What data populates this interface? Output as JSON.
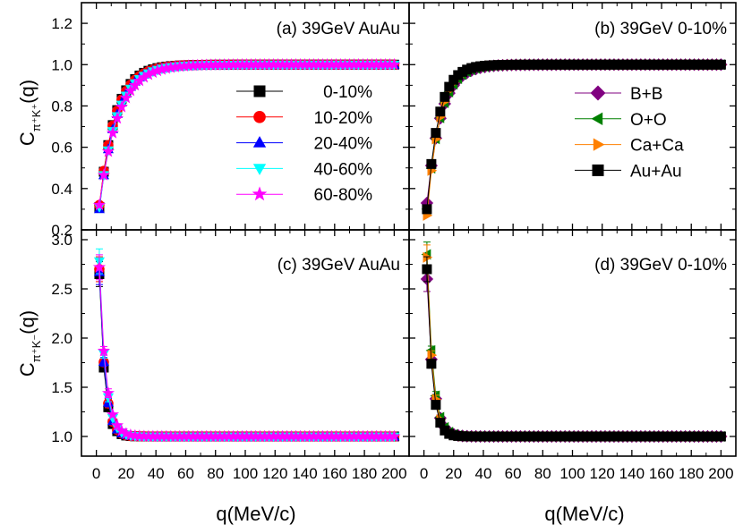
{
  "figure": {
    "xlabel": "q(MeV/c)",
    "ylabel_main": "C",
    "ylabel_top_sub": "π⁺K⁺",
    "ylabel_bottom_sub": "π⁺K⁻",
    "ylabel_suffix": "(q)"
  },
  "chart_data": [
    {
      "id": "a",
      "type": "scatter",
      "title": "(a) 39GeV AuAu",
      "xlabel": "q(MeV/c)",
      "ylabel": "C_{π+K+}(q)",
      "xlim": [
        -10,
        210
      ],
      "ylim": [
        0.2,
        1.3
      ],
      "xticks": [
        0,
        20,
        40,
        60,
        80,
        100,
        120,
        140,
        160,
        180,
        200
      ],
      "yticks": [
        0.2,
        0.4,
        0.6,
        0.8,
        1.0,
        1.2
      ],
      "legend_position": "center-right",
      "model": "saturating",
      "series": [
        {
          "name": "0-10%",
          "color": "#000000",
          "marker": "square",
          "y0": 0.31,
          "yinf": 1.0,
          "scale": 10.5
        },
        {
          "name": "10-20%",
          "color": "#ff0000",
          "marker": "circle",
          "y0": 0.32,
          "yinf": 1.0,
          "scale": 10.8
        },
        {
          "name": "20-40%",
          "color": "#0000ff",
          "marker": "triangle-up",
          "y0": 0.3,
          "yinf": 1.0,
          "scale": 11.2
        },
        {
          "name": "40-60%",
          "color": "#00ffff",
          "marker": "triangle-down",
          "y0": 0.31,
          "yinf": 1.0,
          "scale": 11.8
        },
        {
          "name": "60-80%",
          "color": "#ff00ff",
          "marker": "star",
          "y0": 0.32,
          "yinf": 1.0,
          "scale": 12.5
        }
      ]
    },
    {
      "id": "b",
      "type": "scatter",
      "title": "(b) 39GeV 0-10%",
      "xlabel": "q(MeV/c)",
      "ylabel": "C_{π+K+}(q)",
      "xlim": [
        -10,
        210
      ],
      "ylim": [
        0.2,
        1.3
      ],
      "xticks": [
        0,
        20,
        40,
        60,
        80,
        100,
        120,
        140,
        160,
        180,
        200
      ],
      "yticks": [
        0.2,
        0.4,
        0.6,
        0.8,
        1.0,
        1.2
      ],
      "legend_position": "center-right",
      "model": "saturating",
      "series": [
        {
          "name": "B+B",
          "color": "#800080",
          "marker": "diamond",
          "y0": 0.33,
          "yinf": 1.0,
          "scale": 9.5
        },
        {
          "name": "O+O",
          "color": "#008000",
          "marker": "triangle-left",
          "y0": 0.3,
          "yinf": 1.0,
          "scale": 9.0
        },
        {
          "name": "Ca+Ca",
          "color": "#ff8000",
          "marker": "triangle-right",
          "y0": 0.27,
          "yinf": 1.0,
          "scale": 8.5
        },
        {
          "name": "Au+Au",
          "color": "#000000",
          "marker": "square",
          "y0": 0.3,
          "yinf": 1.0,
          "scale": 8.0
        }
      ]
    },
    {
      "id": "c",
      "type": "scatter",
      "title": "(c) 39GeV AuAu",
      "xlabel": "q(MeV/c)",
      "ylabel": "C_{π+K-}(q)",
      "xlim": [
        -10,
        210
      ],
      "ylim": [
        0.8,
        3.1
      ],
      "xticks": [
        0,
        20,
        40,
        60,
        80,
        100,
        120,
        140,
        160,
        180,
        200
      ],
      "yticks": [
        1.0,
        1.5,
        2.0,
        2.5,
        3.0
      ],
      "model": "decaying",
      "series": [
        {
          "name": "0-10%",
          "color": "#000000",
          "marker": "square",
          "y0": 2.65,
          "yinf": 1.0,
          "scale": 3.5
        },
        {
          "name": "10-20%",
          "color": "#ff0000",
          "marker": "circle",
          "y0": 2.7,
          "yinf": 1.0,
          "scale": 3.7
        },
        {
          "name": "20-40%",
          "color": "#0000ff",
          "marker": "triangle-up",
          "y0": 2.67,
          "yinf": 1.0,
          "scale": 3.8
        },
        {
          "name": "40-60%",
          "color": "#00ffff",
          "marker": "triangle-down",
          "y0": 2.78,
          "yinf": 1.0,
          "scale": 4.0
        },
        {
          "name": "60-80%",
          "color": "#ff00ff",
          "marker": "star",
          "y0": 2.72,
          "yinf": 1.0,
          "scale": 4.4
        }
      ]
    },
    {
      "id": "d",
      "type": "scatter",
      "title": "(d) 39GeV 0-10%",
      "xlabel": "q(MeV/c)",
      "ylabel": "C_{π+K-}(q)",
      "xlim": [
        -10,
        210
      ],
      "ylim": [
        0.8,
        3.1
      ],
      "xticks": [
        0,
        20,
        40,
        60,
        80,
        100,
        120,
        140,
        160,
        180,
        200
      ],
      "yticks": [
        1.0,
        1.5,
        2.0,
        2.5,
        3.0
      ],
      "model": "decaying",
      "series": [
        {
          "name": "B+B",
          "color": "#800080",
          "marker": "diamond",
          "y0": 2.6,
          "yinf": 1.0,
          "scale": 4.2
        },
        {
          "name": "O+O",
          "color": "#008000",
          "marker": "triangle-left",
          "y0": 2.85,
          "yinf": 1.0,
          "scale": 4.0
        },
        {
          "name": "Ca+Ca",
          "color": "#ff8000",
          "marker": "triangle-right",
          "y0": 2.82,
          "yinf": 1.0,
          "scale": 3.8
        },
        {
          "name": "Au+Au",
          "color": "#000000",
          "marker": "square",
          "y0": 2.7,
          "yinf": 1.0,
          "scale": 3.6
        }
      ]
    }
  ]
}
